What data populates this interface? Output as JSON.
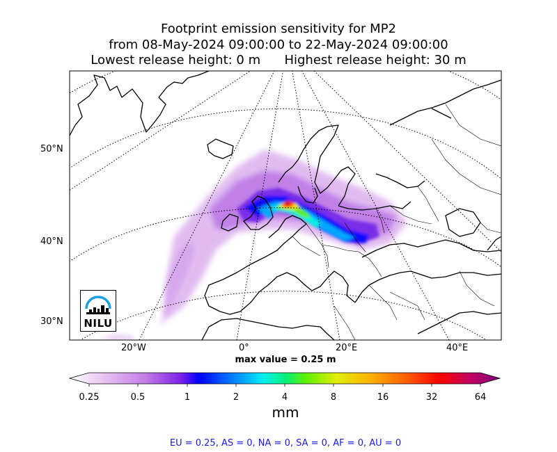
{
  "title": {
    "line1": "Footprint emission sensitivity for MP2",
    "line2": "from 08-May-2024 09:00:00 to 22-May-2024 09:00:00",
    "line3": "Lowest release height: 0 m      Highest release height: 30 m"
  },
  "map": {
    "lat_labels": [
      "50°N",
      "40°N",
      "30°N"
    ],
    "lon_labels": [
      "20°W",
      "0°",
      "20°E",
      "40°E"
    ],
    "max_value_text": "max value = 0.25 m",
    "logo_text": "NILU"
  },
  "colorbar": {
    "ticks": [
      "0.25",
      "0.5",
      "1",
      "2",
      "4",
      "8",
      "16",
      "32",
      "64"
    ],
    "unit": "mm",
    "colors": [
      "#ffffff",
      "#e2b8f0",
      "#b65ce0",
      "#7a1ee6",
      "#0000ff",
      "#0096ff",
      "#00f0f0",
      "#00f080",
      "#70f000",
      "#f0f000",
      "#ffb000",
      "#ff6000",
      "#ff0000",
      "#c00060",
      "#800080"
    ]
  },
  "summary": "EU = 0.25,  AS = 0,  NA = 0,  SA = 0,  AF = 0,  AU = 0"
}
